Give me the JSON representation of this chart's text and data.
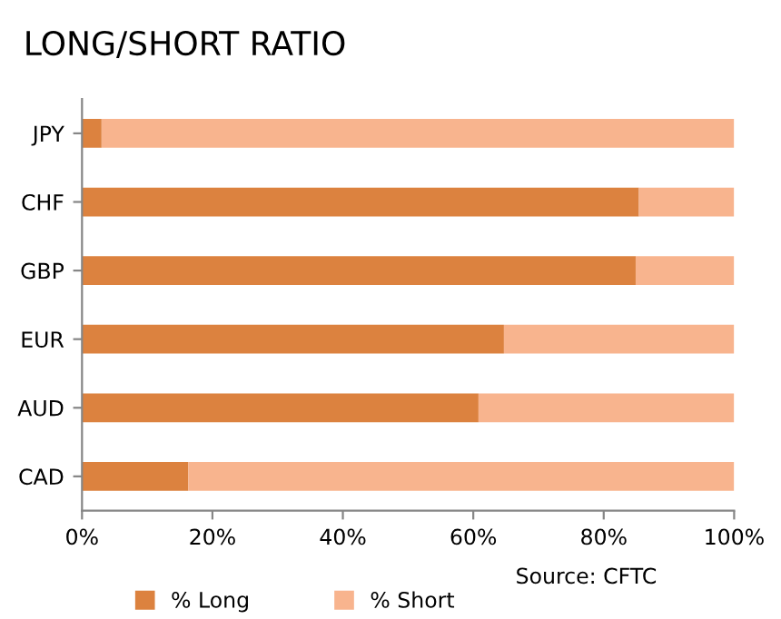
{
  "chart_data": {
    "type": "bar",
    "orientation": "horizontal",
    "stacked": true,
    "title": "LONG/SHORT RATIO",
    "categories": [
      "JPY",
      "CHF",
      "GBP",
      "EUR",
      "AUD",
      "CAD"
    ],
    "series": [
      {
        "name": "% Long",
        "color": "#dc823f",
        "values": [
          3,
          85.4,
          84.9,
          64.7,
          60.8,
          16.3
        ]
      },
      {
        "name": "% Short",
        "color": "#f8b48e",
        "values": [
          97,
          14.6,
          15.1,
          35.3,
          39.2,
          83.7
        ]
      }
    ],
    "xlim": [
      0,
      100
    ],
    "xticks": [
      {
        "value": 0,
        "label": "0%"
      },
      {
        "value": 20,
        "label": "20%"
      },
      {
        "value": 40,
        "label": "40%"
      },
      {
        "value": 60,
        "label": "60%"
      },
      {
        "value": 80,
        "label": "80%"
      },
      {
        "value": 100,
        "label": "100%"
      }
    ],
    "grid": false,
    "legend": "bottom",
    "annotations": [
      "Source: CFTC"
    ]
  }
}
